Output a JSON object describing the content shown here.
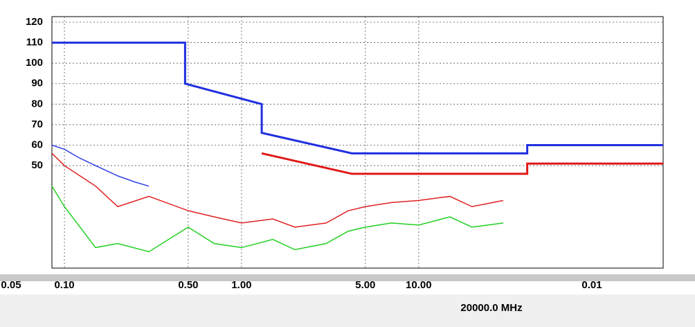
{
  "chart_data": {
    "type": "line",
    "xscale": "log",
    "grid": true,
    "xlim": [
      0.085,
      240
    ],
    "ylim": [
      0,
      120
    ],
    "yticks": [
      50,
      60,
      70,
      80,
      90,
      100,
      110,
      120
    ],
    "xticks": [
      {
        "value": 0.05,
        "label": "0.05"
      },
      {
        "value": 0.1,
        "label": "0.10"
      },
      {
        "value": 0.5,
        "label": "0.50"
      },
      {
        "value": 1,
        "label": "1.00"
      },
      {
        "value": 5,
        "label": "5.00"
      },
      {
        "value": 10,
        "label": "10.00"
      }
    ],
    "annotations": [
      "0.01",
      "20000.0 MHz"
    ],
    "series": [
      {
        "color": "#1f2fe0",
        "x": [
          0.085,
          0.48,
          0.48,
          1.3,
          1.3,
          4.2,
          41,
          41,
          240
        ],
        "values": [
          110,
          110,
          90,
          80,
          66,
          56,
          56,
          60,
          60
        ]
      },
      {
        "color": "#e01818",
        "x": [
          1.3,
          4.2,
          41,
          41,
          240
        ],
        "values": [
          56,
          46,
          46,
          51,
          51
        ]
      },
      {
        "color": "#3040e8",
        "x": [
          0.085,
          0.1,
          0.12,
          0.15,
          0.2,
          0.25,
          0.3
        ],
        "values": [
          60,
          58,
          54,
          50,
          45,
          42,
          40
        ]
      },
      {
        "color": "#e02020",
        "x": [
          0.085,
          0.1,
          0.15,
          0.2,
          0.3,
          0.5,
          0.7,
          1,
          1.5,
          2,
          3,
          4,
          5,
          7,
          10,
          15,
          20,
          30
        ],
        "values": [
          56,
          50,
          40,
          30,
          35,
          28,
          25,
          22,
          24,
          20,
          22,
          28,
          30,
          32,
          33,
          35,
          30,
          33
        ]
      },
      {
        "color": "#20d020",
        "x": [
          0.085,
          0.1,
          0.15,
          0.2,
          0.3,
          0.5,
          0.7,
          1,
          1.5,
          2,
          3,
          4,
          5,
          7,
          10,
          15,
          20,
          30
        ],
        "values": [
          40,
          30,
          10,
          12,
          8,
          20,
          12,
          10,
          14,
          9,
          12,
          18,
          20,
          22,
          21,
          25,
          20,
          22
        ]
      }
    ]
  }
}
